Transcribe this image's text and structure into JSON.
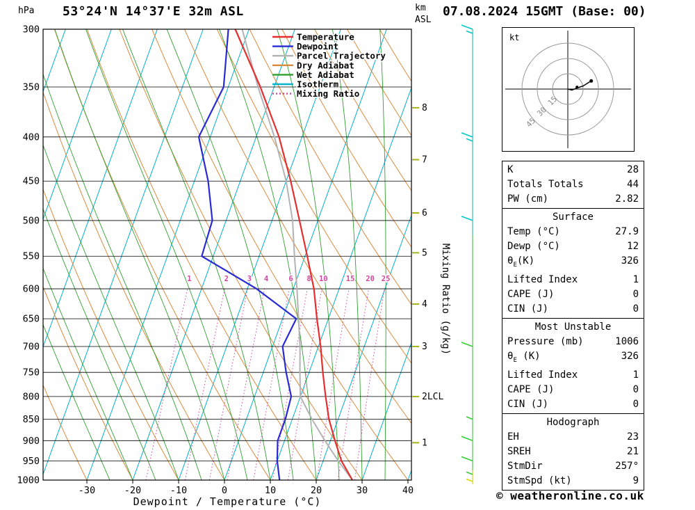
{
  "header": {
    "left_unit": "hPa",
    "title": "53°24'N 14°37'E 32m ASL",
    "datetime": "07.08.2024 15GMT (Base: 00)",
    "km_label": "km",
    "asl_label": "ASL"
  },
  "axes": {
    "pressure_ticks": [
      300,
      350,
      400,
      450,
      500,
      550,
      600,
      650,
      700,
      750,
      800,
      850,
      900,
      950,
      1000
    ],
    "temp_ticks": [
      -30,
      -20,
      -10,
      0,
      10,
      20,
      30,
      40
    ],
    "x_title": "Dewpoint / Temperature (°C)",
    "mixing_axis_label": "Mixing Ratio (g/kg)",
    "km_ticks": [
      {
        "label": "1",
        "p": 905
      },
      {
        "label": "2LCL",
        "p": 800
      },
      {
        "label": "3",
        "p": 700
      },
      {
        "label": "4",
        "p": 625
      },
      {
        "label": "5",
        "p": 545
      },
      {
        "label": "6",
        "p": 490
      },
      {
        "label": "7",
        "p": 425
      },
      {
        "label": "8",
        "p": 370
      }
    ]
  },
  "legend": [
    {
      "label": "Temperature",
      "color": "#e62e2e",
      "dash": false
    },
    {
      "label": "Dewpoint",
      "color": "#2929d6",
      "dash": false
    },
    {
      "label": "Parcel Trajectory",
      "color": "#b3b3b3",
      "dash": false
    },
    {
      "label": "Dry Adiabat",
      "color": "#db8a3d",
      "dash": false
    },
    {
      "label": "Wet Adiabat",
      "color": "#2fa12f",
      "dash": false
    },
    {
      "label": "Isotherm",
      "color": "#00b2cc",
      "dash": false
    },
    {
      "label": "Mixing Ratio",
      "color": "#d1479e",
      "dash": true
    }
  ],
  "chart_data": {
    "type": "line",
    "title": "Skew-T log-P sounding 53°24'N 14°37'E 32m ASL 07.08.2024 15GMT",
    "xlabel": "Dewpoint / Temperature (°C)",
    "ylabel": "Pressure (hPa)",
    "pressure_axis": {
      "min": 300,
      "max": 1000,
      "scale": "log"
    },
    "temp_axis": {
      "min": -40,
      "max": 40,
      "skewed": true
    },
    "pressure_levels": [
      1000,
      950,
      900,
      850,
      800,
      750,
      700,
      650,
      600,
      550,
      500,
      450,
      400,
      350,
      300
    ],
    "series": [
      {
        "name": "Temperature",
        "color": "#e62e2e",
        "values": [
          27.9,
          24,
          21,
          18,
          15.5,
          13,
          10.5,
          7.5,
          4.5,
          0.5,
          -4,
          -9,
          -15,
          -23,
          -33
        ]
      },
      {
        "name": "Dewpoint",
        "color": "#2929d6",
        "values": [
          12,
          10,
          8.5,
          8.5,
          8,
          5,
          2.2,
          3,
          -8,
          -22.5,
          -23,
          -27,
          -32.5,
          -31,
          -34.5
        ]
      },
      {
        "name": "Parcel Trajectory",
        "color": "#b3b3b3",
        "values": [
          27.9,
          23.3,
          18.8,
          14.3,
          10,
          8,
          6,
          3.5,
          0.8,
          -2.3,
          -5.5,
          -10,
          -16,
          -23.5,
          -31.5
        ]
      }
    ],
    "mixing_ratio_lines": [
      1,
      2,
      3,
      4,
      6,
      8,
      10,
      15,
      20,
      25
    ],
    "colors": {
      "temperature": "#e62e2e",
      "dewpoint": "#2929d6",
      "parcel": "#b3b3b3",
      "dry_adiabat": "#db8a3d",
      "wet_adiabat": "#2fa12f",
      "isotherm": "#00b2cc",
      "mixing_ratio": "#d1479e",
      "km_tick": "#a0b41e",
      "wind_upper": "#00b4b4",
      "wind_mid": "#33bb33",
      "wind_low": "#cccc00"
    }
  },
  "wind_barbs": [
    {
      "p": 300,
      "spd": 15,
      "color": "#00c8c8"
    },
    {
      "p": 400,
      "spd": 15,
      "color": "#00c8c8"
    },
    {
      "p": 500,
      "spd": 10,
      "color": "#00c8c8"
    },
    {
      "p": 700,
      "spd": 10,
      "color": "#33cc33"
    },
    {
      "p": 850,
      "spd": 5,
      "color": "#33cc33"
    },
    {
      "p": 900,
      "spd": 10,
      "color": "#33cc33"
    },
    {
      "p": 950,
      "spd": 10,
      "color": "#33cc33"
    },
    {
      "p": 985,
      "spd": 5,
      "color": "#33cc33"
    },
    {
      "p": 1005,
      "spd": 5,
      "color": "#d9d900"
    }
  ],
  "hodograph": {
    "unit_label": "kt",
    "rings": [
      15,
      30,
      45
    ],
    "trace": [
      [
        0,
        0
      ],
      [
        4,
        -1
      ],
      [
        9,
        1
      ],
      [
        15,
        3
      ],
      [
        23,
        8
      ]
    ],
    "storm_motion": {
      "u": 9,
      "v": 2
    }
  },
  "table": {
    "sections": [
      {
        "title": null,
        "rows": [
          {
            "label": "K",
            "value": "28"
          },
          {
            "label": "Totals Totals",
            "value": "44"
          },
          {
            "label": "PW (cm)",
            "value": "2.82"
          }
        ]
      },
      {
        "title": "Surface",
        "rows": [
          {
            "label": "Temp (°C)",
            "value": "27.9"
          },
          {
            "label": "Dewp (°C)",
            "value": "12"
          },
          {
            "pre": "θ",
            "sub": "E",
            "post": "(K)",
            "value": "326"
          },
          {
            "label": "Lifted Index",
            "value": "1"
          },
          {
            "label": "CAPE (J)",
            "value": "0"
          },
          {
            "label": "CIN (J)",
            "value": "0"
          }
        ]
      },
      {
        "title": "Most Unstable",
        "rows": [
          {
            "label": "Pressure (mb)",
            "value": "1006"
          },
          {
            "pre": "θ",
            "sub": "E",
            "post": " (K)",
            "value": "326"
          },
          {
            "label": "Lifted Index",
            "value": "1"
          },
          {
            "label": "CAPE (J)",
            "value": "0"
          },
          {
            "label": "CIN (J)",
            "value": "0"
          }
        ]
      },
      {
        "title": "Hodograph",
        "rows": [
          {
            "label": "EH",
            "value": "23"
          },
          {
            "label": "SREH",
            "value": "21"
          },
          {
            "label": "StmDir",
            "value": "257°"
          },
          {
            "label": "StmSpd (kt)",
            "value": "9"
          }
        ]
      }
    ]
  },
  "footer": {
    "credit": "© weatheronline.co.uk"
  }
}
